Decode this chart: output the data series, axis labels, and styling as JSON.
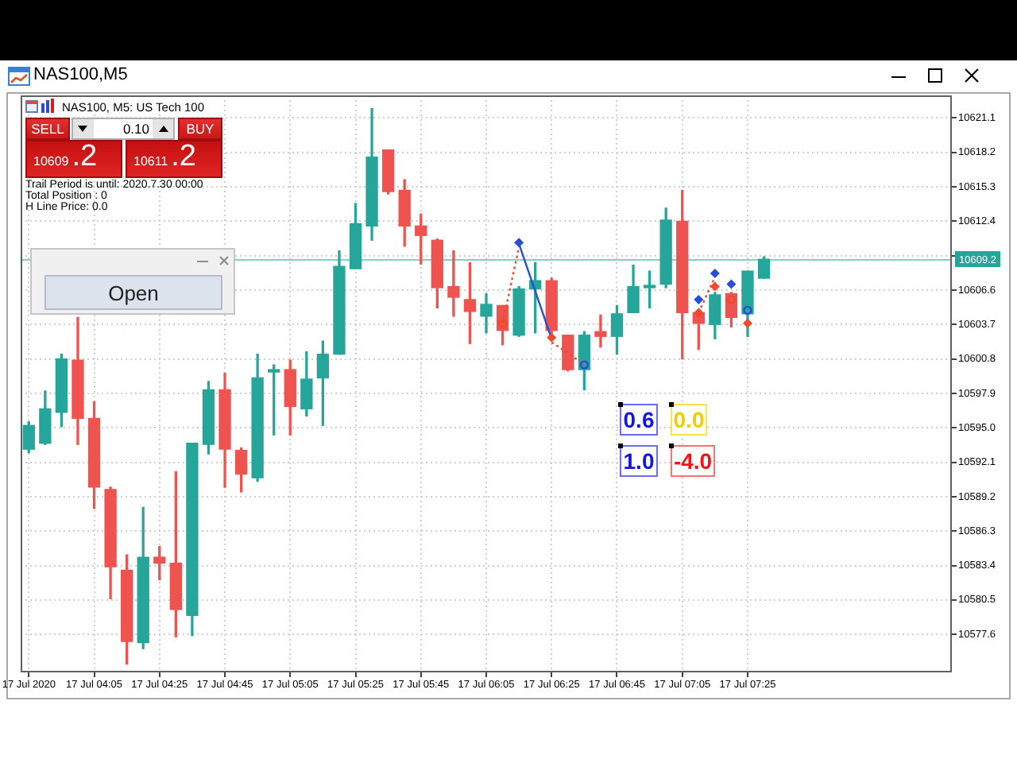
{
  "chart_data": {
    "type": "candlestick",
    "title": "NAS100,M5",
    "subtitle": "NAS100, M5:  US Tech 100",
    "categories": [
      "17 Jul 2020",
      null,
      null,
      null,
      "17 Jul 04:05",
      null,
      null,
      null,
      "17 Jul 04:25",
      null,
      null,
      null,
      "17 Jul 04:45",
      null,
      null,
      null,
      "17 Jul 05:05",
      null,
      null,
      null,
      "17 Jul 05:25",
      null,
      null,
      null,
      "17 Jul 05:45",
      null,
      null,
      null,
      "17 Jul 06:05",
      null,
      null,
      null,
      "17 Jul 06:25",
      null,
      null,
      null,
      "17 Jul 06:45",
      null,
      null,
      null,
      "17 Jul 07:05",
      null,
      null,
      null,
      "17 Jul 07:25",
      null,
      null,
      null,
      null,
      null,
      null,
      null,
      null,
      null,
      null,
      null,
      null
    ],
    "ohlc": [
      [
        10593.2,
        10595.5,
        10592.9,
        10595.2
      ],
      [
        10593.7,
        10598.1,
        10593.6,
        10596.6
      ],
      [
        10596.3,
        10601.2,
        10595.1,
        10600.8
      ],
      [
        10600.7,
        10604.3,
        10593.6,
        10595.8
      ],
      [
        10595.8,
        10597.2,
        10588.2,
        10590.0
      ],
      [
        10589.8,
        10590.0,
        10580.6,
        10583.3
      ],
      [
        10583.0,
        10584.3,
        10575.1,
        10577.0
      ],
      [
        10576.9,
        10588.3,
        10576.4,
        10584.1
      ],
      [
        10584.1,
        10585.0,
        10582.2,
        10583.6
      ],
      [
        10583.6,
        10591.3,
        10577.4,
        10579.7
      ],
      [
        10579.2,
        10593.7,
        10577.5,
        10593.7
      ],
      [
        10593.6,
        10598.9,
        10592.8,
        10598.2
      ],
      [
        10598.2,
        10599.6,
        10590.0,
        10593.2
      ],
      [
        10593.1,
        10593.3,
        10589.6,
        10591.1
      ],
      [
        10590.8,
        10601.2,
        10590.5,
        10599.2
      ],
      [
        10599.7,
        10600.3,
        10594.4,
        10599.9
      ],
      [
        10599.9,
        10600.7,
        10594.4,
        10596.8
      ],
      [
        10596.6,
        10601.4,
        10596.0,
        10599.1
      ],
      [
        10599.2,
        10602.3,
        10595.2,
        10601.2
      ],
      [
        10601.2,
        10609.9,
        10601.2,
        10608.6
      ],
      [
        10608.4,
        10613.9,
        10608.4,
        10612.2
      ],
      [
        10612.0,
        10621.9,
        10610.8,
        10617.8
      ],
      [
        10618.4,
        10618.4,
        10614.7,
        10614.9
      ],
      [
        10615.0,
        10615.9,
        10610.3,
        10612.0
      ],
      [
        10612.0,
        10613.0,
        10608.8,
        10611.2
      ],
      [
        10610.8,
        10610.9,
        10605.1,
        10606.8
      ],
      [
        10606.9,
        10609.9,
        10604.4,
        10606.0
      ],
      [
        10605.8,
        10608.9,
        10602.1,
        10604.8
      ],
      [
        10604.4,
        10606.3,
        10603.0,
        10605.4
      ],
      [
        10605.3,
        10605.3,
        10602.0,
        10603.2
      ],
      [
        10602.8,
        10606.9,
        10602.7,
        10606.7
      ],
      [
        10606.7,
        10608.9,
        10603.0,
        10607.4
      ],
      [
        10607.4,
        10607.6,
        10602.8,
        10603.2
      ],
      [
        10602.8,
        10602.8,
        10599.8,
        10599.9
      ],
      [
        10599.9,
        10603.1,
        10598.2,
        10602.8
      ],
      [
        10603.1,
        10604.5,
        10601.8,
        10602.7
      ],
      [
        10602.7,
        10605.3,
        10601.2,
        10604.6
      ],
      [
        10604.7,
        10608.7,
        10604.7,
        10606.9
      ],
      [
        10606.8,
        10608.2,
        10605.1,
        10607.0
      ],
      [
        10607.1,
        10613.5,
        10606.8,
        10612.5
      ],
      [
        10612.4,
        10615.0,
        10600.8,
        10604.7
      ],
      [
        10604.7,
        10604.9,
        10601.6,
        10603.8
      ],
      [
        10603.7,
        10606.4,
        10602.5,
        10606.2
      ],
      [
        10606.3,
        10606.4,
        10603.5,
        10604.3
      ],
      [
        10604.6,
        10608.2,
        10602.7,
        10608.2
      ],
      [
        10607.6,
        10609.4,
        10607.6,
        10609.2
      ],
      null,
      null,
      null,
      null,
      null,
      null,
      null,
      null,
      null,
      null,
      null
    ],
    "colors": [
      "#26a69a",
      "#26a69a",
      "#26a69a",
      "#ef5350",
      "#ef5350",
      "#ef5350",
      "#ef5350",
      "#26a69a",
      "#ef5350",
      "#ef5350",
      "#26a69a",
      "#26a69a",
      "#ef5350",
      "#ef5350",
      "#26a69a",
      "#26a69a",
      "#ef5350",
      "#26a69a",
      "#26a69a",
      "#26a69a",
      "#26a69a",
      "#26a69a",
      "#ef5350",
      "#ef5350",
      "#ef5350",
      "#ef5350",
      "#ef5350",
      "#ef5350",
      "#26a69a",
      "#ef5350",
      "#26a69a",
      "#26a69a",
      "#ef5350",
      "#ef5350",
      "#26a69a",
      "#ef5350",
      "#26a69a",
      "#26a69a",
      "#26a69a",
      "#26a69a",
      "#ef5350",
      "#ef5350",
      "#26a69a",
      "#ef5350",
      "#26a69a",
      "#26a69a",
      null,
      null,
      null,
      null,
      null,
      null,
      null,
      null,
      null,
      null,
      null
    ],
    "series": [
      {
        "type": "line",
        "color": "#2a4fd6",
        "line_style": "solid",
        "marker": "none",
        "values": [
          null,
          null,
          null,
          null,
          null,
          null,
          null,
          null,
          null,
          null,
          null,
          null,
          null,
          null,
          null,
          null,
          null,
          null,
          null,
          null,
          null,
          null,
          null,
          null,
          null,
          null,
          null,
          null,
          null,
          null,
          10610.5,
          10606.5,
          10602.5,
          null,
          null,
          null,
          null,
          null,
          null,
          null,
          null,
          null,
          null,
          null,
          null,
          null,
          null,
          null,
          null,
          null,
          null,
          null,
          null,
          null,
          null,
          null,
          null
        ]
      },
      {
        "type": "line",
        "color": "#f04a2a",
        "line_style": "dotted",
        "marker": "none",
        "values": [
          null,
          null,
          null,
          null,
          null,
          null,
          null,
          null,
          null,
          null,
          null,
          null,
          null,
          null,
          null,
          null,
          null,
          null,
          null,
          null,
          null,
          null,
          null,
          null,
          null,
          null,
          null,
          null,
          null,
          10603.8,
          10610.2,
          null,
          null,
          null,
          null,
          null,
          null,
          null,
          null,
          null,
          null,
          null,
          null,
          null,
          null,
          null,
          null,
          null,
          null,
          null,
          null,
          null,
          null,
          null,
          null,
          null,
          null
        ]
      },
      {
        "type": "line",
        "color": "#f04a2a",
        "line_style": "dotted",
        "marker": "none",
        "values": [
          null,
          null,
          null,
          null,
          null,
          null,
          null,
          null,
          null,
          null,
          null,
          null,
          null,
          null,
          null,
          null,
          null,
          null,
          null,
          null,
          null,
          null,
          null,
          null,
          null,
          null,
          null,
          null,
          null,
          null,
          null,
          null,
          10602.2,
          10601.3,
          10600.3,
          null,
          null,
          null,
          null,
          null,
          null,
          null,
          null,
          null,
          null,
          null,
          null,
          null,
          null,
          null,
          null,
          null,
          null,
          null,
          null,
          null,
          null
        ]
      },
      {
        "type": "line",
        "color": "#f04a2a",
        "line_style": "dotted",
        "marker": "none",
        "values": [
          null,
          null,
          null,
          null,
          null,
          null,
          null,
          null,
          null,
          null,
          null,
          null,
          null,
          null,
          null,
          null,
          null,
          null,
          null,
          null,
          null,
          null,
          null,
          null,
          null,
          null,
          null,
          null,
          null,
          null,
          null,
          null,
          null,
          null,
          null,
          null,
          null,
          null,
          null,
          null,
          null,
          10604.7,
          10607.7,
          null,
          null,
          null,
          null,
          null,
          null,
          null,
          null,
          null,
          null,
          null,
          null,
          null,
          null
        ]
      },
      {
        "type": "scatter",
        "color": "#2a4fd6",
        "marker": "diamond",
        "values": [
          null,
          null,
          null,
          null,
          null,
          null,
          null,
          null,
          null,
          null,
          null,
          null,
          null,
          null,
          null,
          null,
          null,
          null,
          null,
          null,
          null,
          null,
          null,
          null,
          null,
          null,
          null,
          null,
          null,
          null,
          10610.6,
          null,
          null,
          null,
          null,
          null,
          null,
          null,
          null,
          null,
          null,
          10605.8,
          10608.0,
          10607.1,
          null,
          null,
          null,
          null,
          null,
          null,
          null,
          null,
          null,
          null,
          null,
          null,
          null
        ]
      },
      {
        "type": "scatter",
        "color": "#2a4fd6",
        "marker": "circle",
        "values": [
          null,
          null,
          null,
          null,
          null,
          null,
          null,
          null,
          null,
          null,
          null,
          null,
          null,
          null,
          null,
          null,
          null,
          null,
          null,
          null,
          null,
          null,
          null,
          null,
          null,
          null,
          null,
          null,
          null,
          null,
          null,
          null,
          null,
          null,
          10600.3,
          null,
          null,
          null,
          null,
          null,
          null,
          null,
          null,
          null,
          10604.9,
          null,
          null,
          null,
          null,
          null,
          null,
          null,
          null,
          null,
          null,
          null,
          null
        ]
      },
      {
        "type": "scatter",
        "color": "#f04a2a",
        "marker": "diamond",
        "values": [
          null,
          null,
          null,
          null,
          null,
          null,
          null,
          null,
          null,
          null,
          null,
          null,
          null,
          null,
          null,
          null,
          null,
          null,
          null,
          null,
          null,
          null,
          null,
          null,
          null,
          null,
          null,
          null,
          null,
          null,
          null,
          null,
          10602.6,
          null,
          null,
          null,
          null,
          null,
          null,
          null,
          null,
          10604.7,
          10606.9,
          null,
          10603.8,
          null,
          null,
          null,
          null,
          null,
          null,
          null,
          null,
          null,
          null,
          null,
          null
        ]
      },
      {
        "type": "scatter",
        "color": "#f04a2a",
        "marker": "circle",
        "values": [
          null,
          null,
          null,
          null,
          null,
          null,
          null,
          null,
          null,
          null,
          null,
          null,
          null,
          null,
          null,
          null,
          null,
          null,
          null,
          null,
          null,
          null,
          null,
          null,
          null,
          null,
          null,
          null,
          null,
          10603.8,
          null,
          null,
          null,
          null,
          null,
          null,
          null,
          null,
          null,
          null,
          null,
          null,
          null,
          10605.8,
          null,
          null,
          null,
          null,
          null,
          null,
          null,
          null,
          null,
          null,
          null,
          null,
          null
        ]
      }
    ],
    "ylim": [
      10574.4,
      10623.0
    ],
    "yticks": [
      10577.6,
      10580.5,
      10583.4,
      10586.3,
      10589.2,
      10592.1,
      {
        "value": 10595,
        "label": "10595.0"
      },
      10597.9,
      10600.8,
      10603.7,
      10606.6,
      {
        "value": 10609.5,
        "label": null
      },
      10612.4,
      10615.3,
      10618.2,
      10621.1
    ],
    "grid": true,
    "ref_lines": [
      {
        "axis": "y",
        "value": 10609.2,
        "label": "10609.2",
        "color": "#26a69a"
      }
    ],
    "annotations": [
      "SELL",
      "0.10",
      "BUY",
      "10609.2",
      "10611.2",
      "Trail Period is until: 2020.7.30 00:00",
      "Total Position : 0",
      "H Line Price: 0.0",
      "Open",
      "0.6",
      "0.0",
      "1.0",
      "-4.0"
    ]
  }
}
